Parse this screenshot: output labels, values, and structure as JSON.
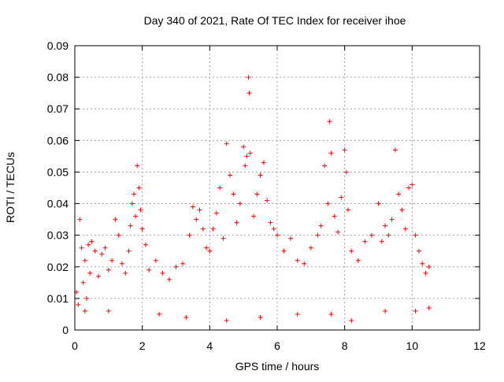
{
  "chart_data": {
    "type": "scatter",
    "title": "Day 340 of 2021, Rate Of TEC Index for receiver ihoe",
    "xlabel": "GPS time / hours",
    "ylabel": "ROTI / TECUs",
    "xlim": [
      0,
      12
    ],
    "ylim": [
      0,
      0.09
    ],
    "x_ticks": [
      "0",
      "2",
      "4",
      "6",
      "8",
      "10",
      "12"
    ],
    "y_ticks": [
      "0",
      "0.01",
      "0.02",
      "0.03",
      "0.04",
      "0.05",
      "0.06",
      "0.07",
      "0.08",
      "0.09"
    ],
    "grid": true,
    "marker": "+",
    "series": [
      {
        "color": "#ff0000",
        "points": [
          [
            0.05,
            0.012
          ],
          [
            0.1,
            0.008
          ],
          [
            0.15,
            0.035
          ],
          [
            0.2,
            0.026
          ],
          [
            0.25,
            0.015
          ],
          [
            0.3,
            0.022
          ],
          [
            0.35,
            0.01
          ],
          [
            0.4,
            0.027
          ],
          [
            0.45,
            0.018
          ],
          [
            0.5,
            0.028
          ],
          [
            0.6,
            0.025
          ],
          [
            0.7,
            0.017
          ],
          [
            0.8,
            0.024
          ],
          [
            0.9,
            0.026
          ],
          [
            1.0,
            0.019
          ],
          [
            1.1,
            0.022
          ],
          [
            1.2,
            0.035
          ],
          [
            1.3,
            0.03
          ],
          [
            1.4,
            0.021
          ],
          [
            1.5,
            0.018
          ],
          [
            1.6,
            0.025
          ],
          [
            1.65,
            0.033
          ],
          [
            1.7,
            0.04
          ],
          [
            1.75,
            0.043
          ],
          [
            1.8,
            0.036
          ],
          [
            1.85,
            0.052
          ],
          [
            1.9,
            0.045
          ],
          [
            1.95,
            0.038
          ],
          [
            2.0,
            0.032
          ],
          [
            2.1,
            0.027
          ],
          [
            2.2,
            0.019
          ],
          [
            2.4,
            0.022
          ],
          [
            2.6,
            0.018
          ],
          [
            2.8,
            0.016
          ],
          [
            3.0,
            0.02
          ],
          [
            3.2,
            0.021
          ],
          [
            3.4,
            0.03
          ],
          [
            3.5,
            0.039
          ],
          [
            3.6,
            0.035
          ],
          [
            3.7,
            0.038
          ],
          [
            3.8,
            0.032
          ],
          [
            3.9,
            0.026
          ],
          [
            4.0,
            0.025
          ],
          [
            4.1,
            0.032
          ],
          [
            4.2,
            0.037
          ],
          [
            4.3,
            0.045
          ],
          [
            4.4,
            0.029
          ],
          [
            4.5,
            0.059
          ],
          [
            4.6,
            0.049
          ],
          [
            4.7,
            0.043
          ],
          [
            4.8,
            0.034
          ],
          [
            4.9,
            0.04
          ],
          [
            5.0,
            0.058
          ],
          [
            5.05,
            0.052
          ],
          [
            5.1,
            0.055
          ],
          [
            5.15,
            0.08
          ],
          [
            5.17,
            0.075
          ],
          [
            5.2,
            0.056
          ],
          [
            5.3,
            0.036
          ],
          [
            5.4,
            0.043
          ],
          [
            5.5,
            0.049
          ],
          [
            5.6,
            0.053
          ],
          [
            5.7,
            0.041
          ],
          [
            5.8,
            0.034
          ],
          [
            5.9,
            0.032
          ],
          [
            6.0,
            0.03
          ],
          [
            6.2,
            0.025
          ],
          [
            6.4,
            0.029
          ],
          [
            6.6,
            0.022
          ],
          [
            6.8,
            0.021
          ],
          [
            7.0,
            0.026
          ],
          [
            7.2,
            0.03
          ],
          [
            7.3,
            0.033
          ],
          [
            7.4,
            0.052
          ],
          [
            7.5,
            0.04
          ],
          [
            7.55,
            0.066
          ],
          [
            7.6,
            0.056
          ],
          [
            7.7,
            0.036
          ],
          [
            7.8,
            0.031
          ],
          [
            7.9,
            0.042
          ],
          [
            8.0,
            0.057
          ],
          [
            8.05,
            0.05
          ],
          [
            8.1,
            0.038
          ],
          [
            8.2,
            0.025
          ],
          [
            8.4,
            0.022
          ],
          [
            8.6,
            0.028
          ],
          [
            8.8,
            0.03
          ],
          [
            9.0,
            0.04
          ],
          [
            9.1,
            0.028
          ],
          [
            9.2,
            0.033
          ],
          [
            9.3,
            0.03
          ],
          [
            9.4,
            0.035
          ],
          [
            9.5,
            0.057
          ],
          [
            9.6,
            0.043
          ],
          [
            9.7,
            0.038
          ],
          [
            9.8,
            0.032
          ],
          [
            9.9,
            0.045
          ],
          [
            10.0,
            0.046
          ],
          [
            10.1,
            0.03
          ],
          [
            10.2,
            0.025
          ],
          [
            10.3,
            0.021
          ],
          [
            10.4,
            0.018
          ],
          [
            10.5,
            0.02
          ],
          [
            0.3,
            0.006
          ],
          [
            1.0,
            0.006
          ],
          [
            2.5,
            0.005
          ],
          [
            3.3,
            0.004
          ],
          [
            4.5,
            0.003
          ],
          [
            5.5,
            0.004
          ],
          [
            6.6,
            0.005
          ],
          [
            7.6,
            0.005
          ],
          [
            8.2,
            0.003
          ],
          [
            9.2,
            0.006
          ],
          [
            10.1,
            0.006
          ],
          [
            10.5,
            0.007
          ]
        ]
      }
    ]
  }
}
